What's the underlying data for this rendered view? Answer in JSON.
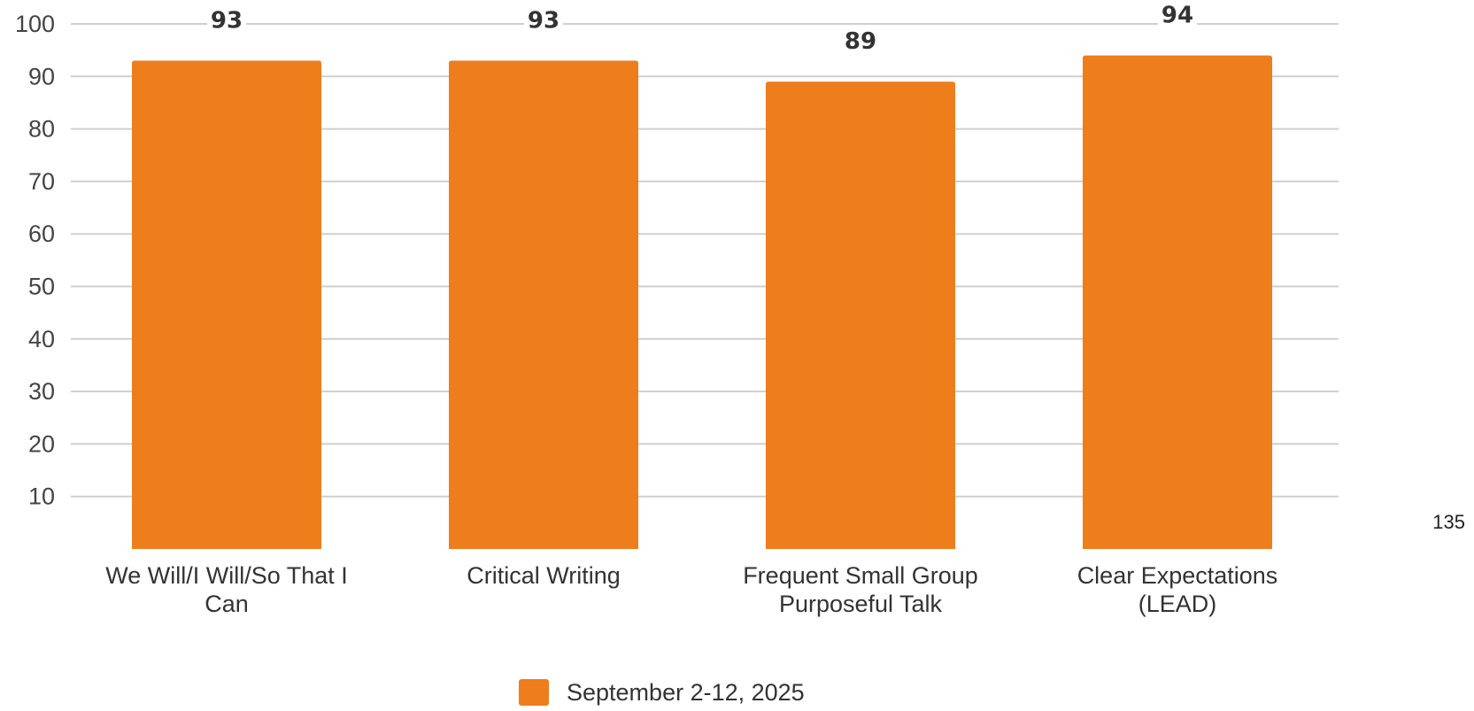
{
  "chart_data": {
    "type": "bar",
    "categories": [
      [
        "We Will/I Will/So That I",
        "Can"
      ],
      [
        "Critical Writing"
      ],
      [
        "Frequent Small Group",
        "Purposeful Talk"
      ],
      [
        "Clear Expectations",
        "(LEAD)"
      ]
    ],
    "series": [
      {
        "name": "September 2-12, 2025",
        "values": [
          93,
          93,
          89,
          94
        ],
        "data_labels": [
          "93",
          "93",
          "89",
          "94"
        ]
      }
    ],
    "yticks": [
      10,
      20,
      30,
      40,
      50,
      60,
      70,
      80,
      90,
      100
    ],
    "ylim": [
      0,
      100
    ],
    "grid": true,
    "legend_position": "bottom-center",
    "title": "",
    "xlabel": "",
    "ylabel": ""
  },
  "side_note": "135",
  "colors": {
    "bar": "#EE7D1B",
    "grid": "#cfcfcf"
  }
}
